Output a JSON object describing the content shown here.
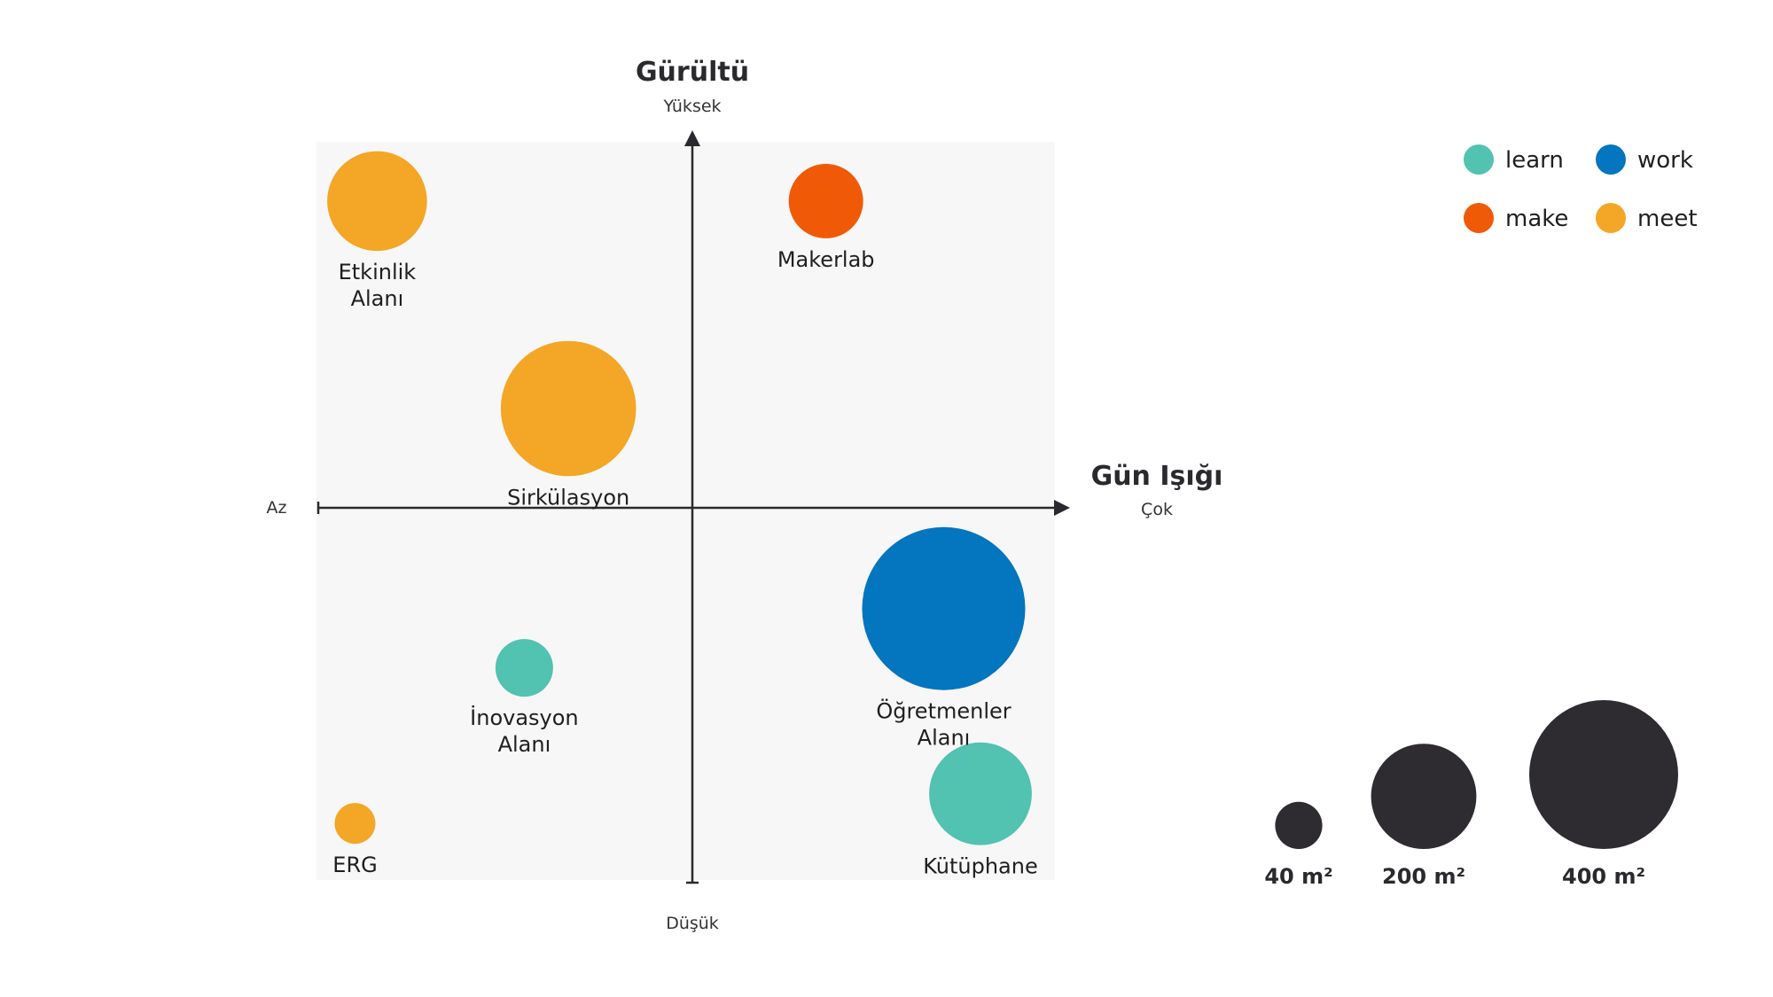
{
  "chart_data": {
    "type": "scatter",
    "title": "",
    "x_axis": {
      "label": "Gün Işığı",
      "low_label": "Az",
      "high_label": "Çok",
      "range": [
        -5,
        5
      ]
    },
    "y_axis": {
      "label": "Gürültü",
      "high_label": "Yüksek",
      "low_label": "Düşük",
      "range": [
        -5,
        5
      ]
    },
    "categories": [
      {
        "key": "learn",
        "label": "learn",
        "color": "#52c2b1"
      },
      {
        "key": "work",
        "label": "work",
        "color": "#0475bf"
      },
      {
        "key": "make",
        "label": "make",
        "color": "#f05a07"
      },
      {
        "key": "meet",
        "label": "meet",
        "color": "#f4a626"
      }
    ],
    "points": [
      {
        "label": [
          "Etkinlik",
          "Alanı"
        ],
        "category": "meet",
        "x": -4.2,
        "y": 4.2,
        "area_m2": 180
      },
      {
        "label": [
          "Makerlab"
        ],
        "category": "make",
        "x": 1.9,
        "y": 4.2,
        "area_m2": 100
      },
      {
        "label": [
          "Sirkülasyon"
        ],
        "category": "meet",
        "x": -1.6,
        "y": 1.4,
        "area_m2": 330
      },
      {
        "label": [
          "Öğretmenler",
          "Alanı"
        ],
        "category": "work",
        "x": 3.5,
        "y": -1.3,
        "area_m2": 480
      },
      {
        "label": [
          "İnovasyon",
          "Alanı"
        ],
        "category": "learn",
        "x": -2.2,
        "y": -2.1,
        "area_m2": 60
      },
      {
        "label": [
          "ERG"
        ],
        "category": "meet",
        "x": -4.5,
        "y": -4.2,
        "area_m2": 30
      },
      {
        "label": [
          "Kütüphane"
        ],
        "category": "learn",
        "x": 4.0,
        "y": -3.8,
        "area_m2": 190
      }
    ],
    "size_legend": [
      {
        "label": "40 m²",
        "area_m2": 40
      },
      {
        "label": "200 m²",
        "area_m2": 200
      },
      {
        "label": "400 m²",
        "area_m2": 400
      }
    ],
    "size_legend_color": "#2e2c31",
    "plot_background": "#f7f7f7",
    "axis_color": "#2a2a2e",
    "legend_placement": "top-right",
    "grid": false
  }
}
